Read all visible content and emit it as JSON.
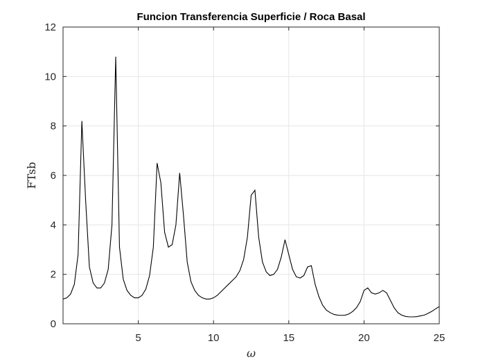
{
  "chart_data": {
    "type": "line",
    "title": "Funcion Transferencia Superficie / Roca Basal",
    "xlabel": "ω",
    "ylabel": "FTsb",
    "xlim": [
      0,
      25
    ],
    "ylim": [
      0,
      12
    ],
    "xticks": [
      5,
      10,
      15,
      20,
      25
    ],
    "yticks": [
      0,
      2,
      4,
      6,
      8,
      10,
      12
    ],
    "grid": true,
    "series": [
      {
        "color": "#000000",
        "x": [
          0,
          0.25,
          0.5,
          0.75,
          1.0,
          1.25,
          1.5,
          1.75,
          2.0,
          2.25,
          2.5,
          2.75,
          3.0,
          3.25,
          3.5,
          3.75,
          4.0,
          4.25,
          4.5,
          4.75,
          5.0,
          5.25,
          5.5,
          5.75,
          6.0,
          6.25,
          6.5,
          6.75,
          7.0,
          7.25,
          7.5,
          7.75,
          8.0,
          8.25,
          8.5,
          8.75,
          9.0,
          9.25,
          9.5,
          9.75,
          10.0,
          10.25,
          10.5,
          10.75,
          11.0,
          11.25,
          11.5,
          11.75,
          12.0,
          12.25,
          12.5,
          12.75,
          13.0,
          13.25,
          13.5,
          13.75,
          14.0,
          14.25,
          14.5,
          14.75,
          15.0,
          15.25,
          15.5,
          15.75,
          16.0,
          16.25,
          16.5,
          16.75,
          17.0,
          17.25,
          17.5,
          17.75,
          18.0,
          18.25,
          18.5,
          18.75,
          19.0,
          19.25,
          19.5,
          19.75,
          20.0,
          20.25,
          20.5,
          20.75,
          21.0,
          21.25,
          21.5,
          21.75,
          22.0,
          22.25,
          22.5,
          22.75,
          23.0,
          23.25,
          23.5,
          23.75,
          24.0,
          24.25,
          24.5,
          24.75,
          25.0
        ],
        "y": [
          1.0,
          1.05,
          1.2,
          1.6,
          2.8,
          8.2,
          5.0,
          2.3,
          1.65,
          1.45,
          1.45,
          1.65,
          2.2,
          4.0,
          10.8,
          3.1,
          1.8,
          1.35,
          1.15,
          1.05,
          1.05,
          1.15,
          1.4,
          1.95,
          3.1,
          6.5,
          5.7,
          3.7,
          3.1,
          3.2,
          4.0,
          6.1,
          4.4,
          2.5,
          1.7,
          1.35,
          1.15,
          1.05,
          1.0,
          1.0,
          1.05,
          1.15,
          1.3,
          1.45,
          1.6,
          1.75,
          1.9,
          2.15,
          2.6,
          3.5,
          5.2,
          5.4,
          3.5,
          2.5,
          2.1,
          1.95,
          2.0,
          2.2,
          2.7,
          3.4,
          2.8,
          2.2,
          1.9,
          1.85,
          1.95,
          2.3,
          2.35,
          1.6,
          1.1,
          0.75,
          0.55,
          0.45,
          0.38,
          0.35,
          0.34,
          0.35,
          0.4,
          0.5,
          0.65,
          0.9,
          1.35,
          1.45,
          1.25,
          1.2,
          1.25,
          1.35,
          1.25,
          0.95,
          0.65,
          0.45,
          0.35,
          0.3,
          0.28,
          0.28,
          0.29,
          0.32,
          0.35,
          0.42,
          0.5,
          0.6,
          0.7
        ]
      }
    ]
  }
}
